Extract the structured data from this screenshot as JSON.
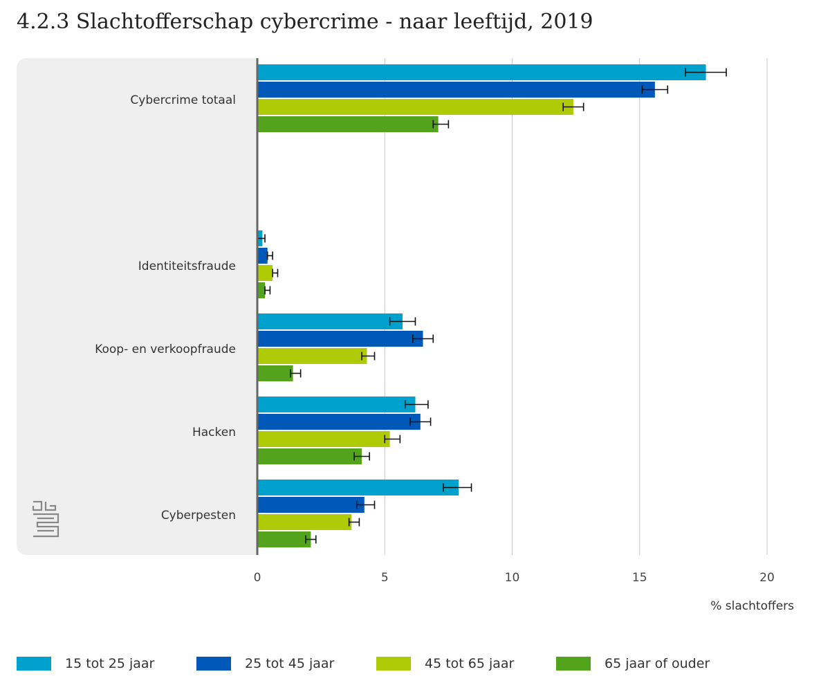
{
  "title": "4.2.3 Slachtofferschap cybercrime - naar leeftijd, 2019",
  "colors": {
    "panel_bg": "#efefef",
    "axis": "#666666",
    "grid": "#c8c8c8",
    "series": [
      "#00a1cd",
      "#0058b8",
      "#afcb05",
      "#53a31d"
    ]
  },
  "chart_data": {
    "type": "bar",
    "orientation": "horizontal",
    "categories": [
      "Cybercrime totaal",
      "",
      "Identiteitsfraude",
      "Koop- en verkoopfraude",
      "Hacken",
      "Cyberpesten"
    ],
    "series": [
      {
        "name": "15 tot 25 jaar",
        "values": [
          17.6,
          null,
          0.2,
          5.7,
          6.2,
          7.9
        ],
        "err_low": [
          16.8,
          null,
          0.0,
          5.2,
          5.8,
          7.3
        ],
        "err_high": [
          18.4,
          null,
          0.3,
          6.2,
          6.7,
          8.4
        ]
      },
      {
        "name": "25 tot 45 jaar",
        "values": [
          15.6,
          null,
          0.4,
          6.5,
          6.4,
          4.2
        ],
        "err_low": [
          15.1,
          null,
          0.4,
          6.1,
          6.0,
          3.9
        ],
        "err_high": [
          16.1,
          null,
          0.6,
          6.9,
          6.8,
          4.6
        ]
      },
      {
        "name": "45 tot 65 jaar",
        "values": [
          12.4,
          null,
          0.6,
          4.3,
          5.2,
          3.7
        ],
        "err_low": [
          12.0,
          null,
          0.6,
          4.1,
          5.0,
          3.6
        ],
        "err_high": [
          12.8,
          null,
          0.8,
          4.6,
          5.6,
          4.0
        ]
      },
      {
        "name": "65 jaar of ouder",
        "values": [
          7.1,
          null,
          0.3,
          1.4,
          4.1,
          2.1
        ],
        "err_low": [
          6.9,
          null,
          0.3,
          1.3,
          3.8,
          1.9
        ],
        "err_high": [
          7.5,
          null,
          0.5,
          1.7,
          4.4,
          2.3
        ]
      }
    ],
    "xlim": [
      0,
      20
    ],
    "xticks": [
      0,
      5,
      10,
      15,
      20
    ],
    "xlabel": "% slachtoffers",
    "grid": true,
    "legend_position": "bottom"
  }
}
